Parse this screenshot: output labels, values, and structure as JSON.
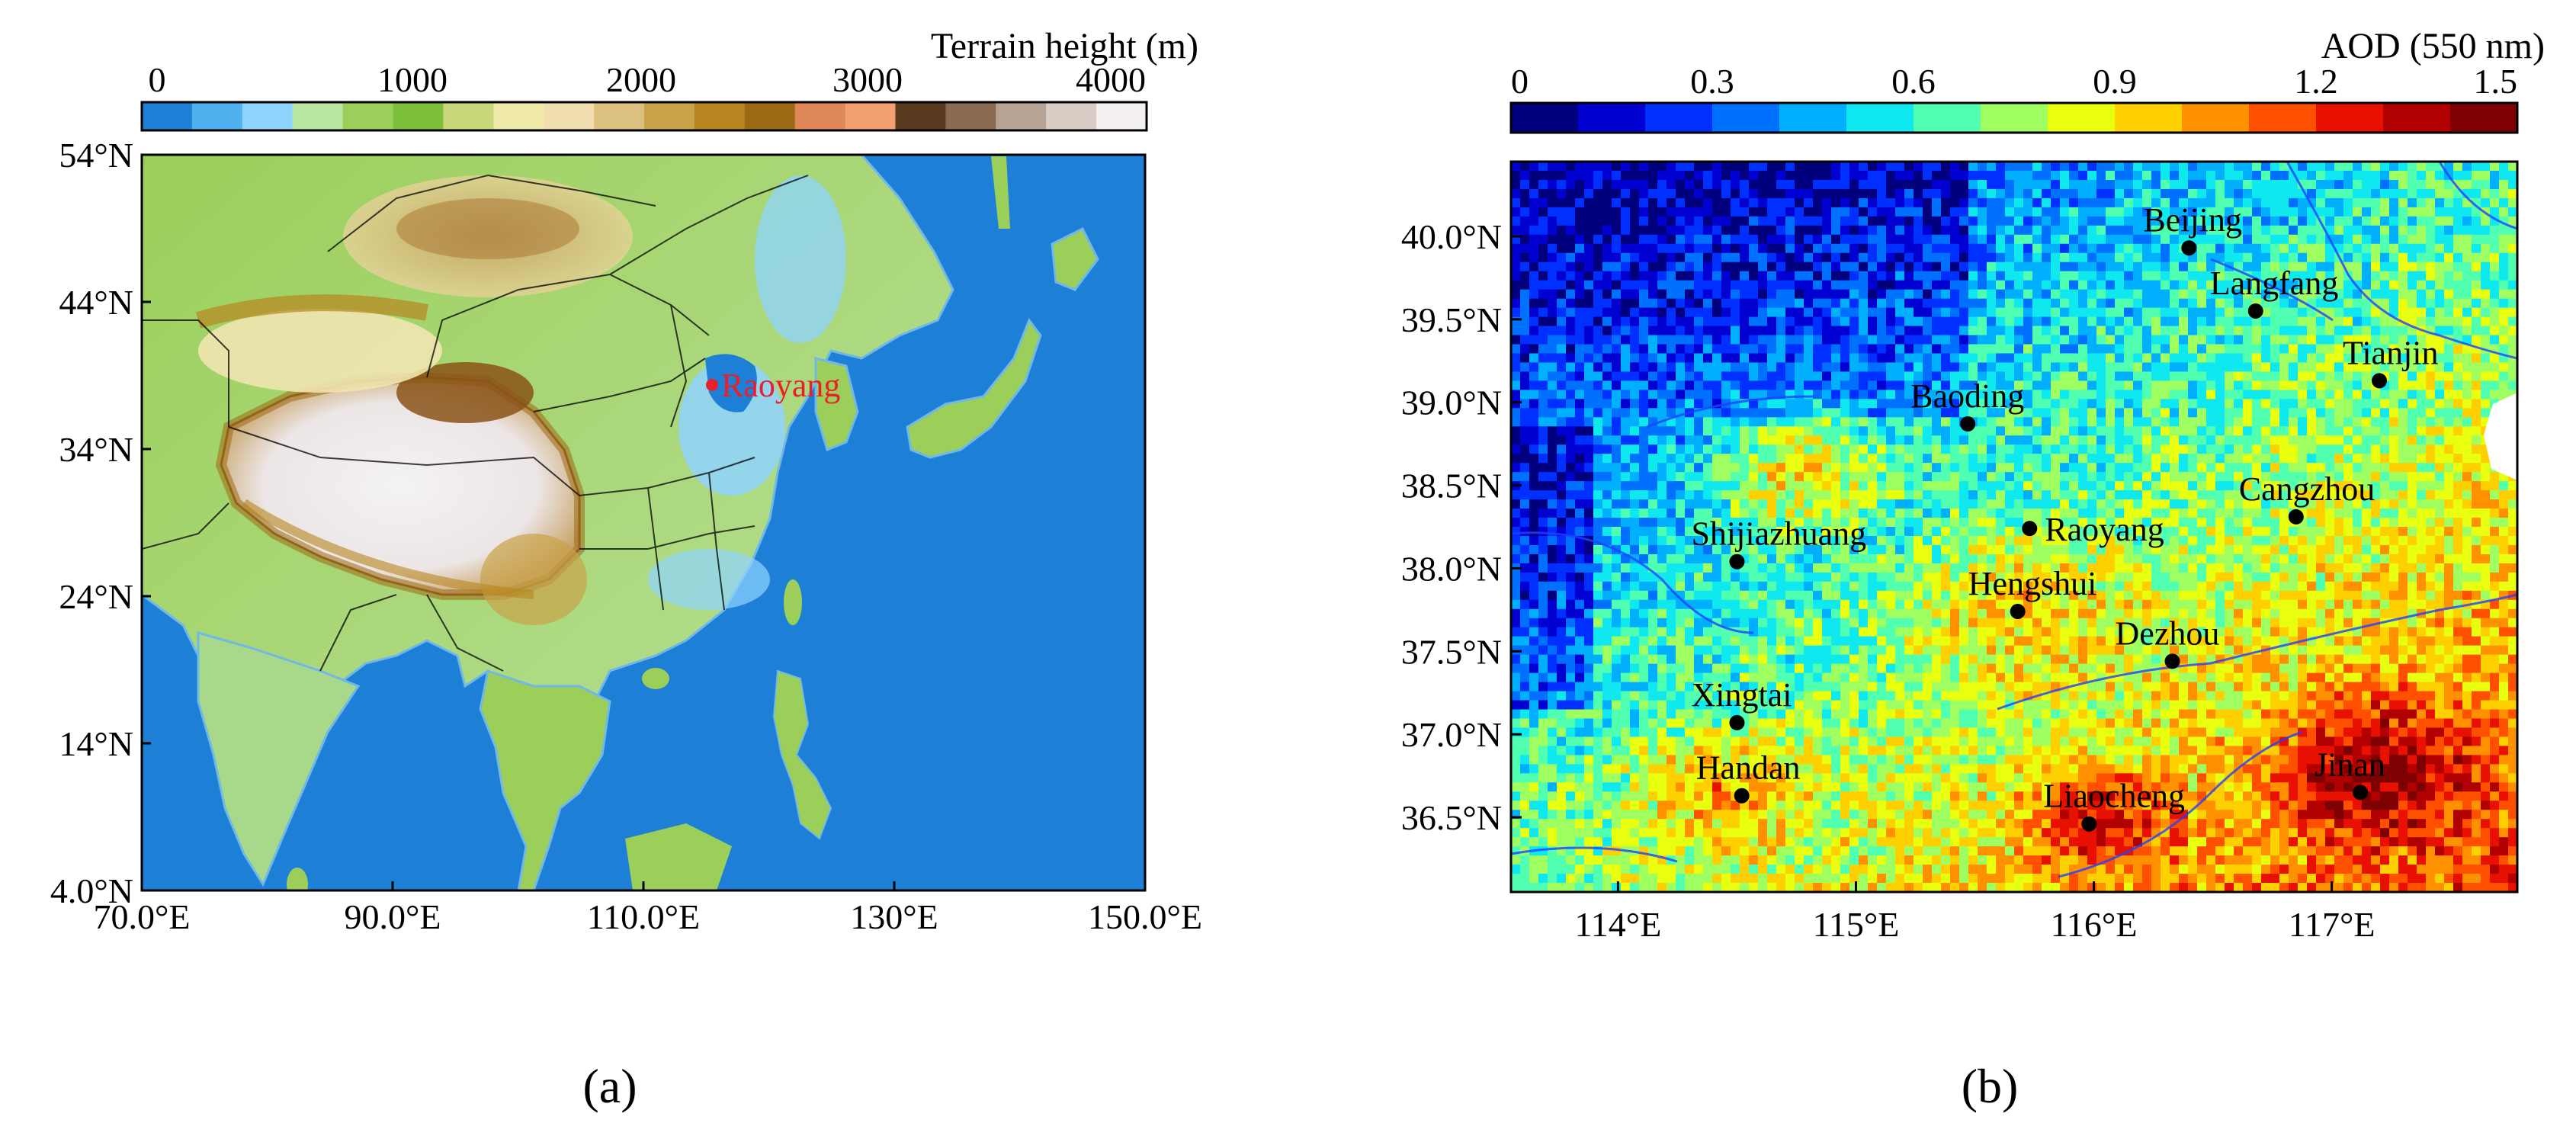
{
  "panel_a": {
    "label": "(a)",
    "colorbar": {
      "title": "Terrain height (m)",
      "ticks": [
        "0",
        "1000",
        "2000",
        "3000",
        "4000"
      ],
      "colors": [
        "#1e7fd6",
        "#4fb0f0",
        "#8fd4ff",
        "#b8e6a0",
        "#9ccf5a",
        "#7cc03a",
        "#c8d87a",
        "#efe9a8",
        "#f0ddb0",
        "#dcc080",
        "#c9a24a",
        "#b88620",
        "#9c6a14",
        "#e0875a",
        "#f2a070",
        "#5a3a1e",
        "#8a6a52",
        "#b8a494",
        "#d8ccc4",
        "#f4f0f0"
      ]
    },
    "map": {
      "lat_ticks": [
        "54°N",
        "44°N",
        "34°N",
        "24°N",
        "14°N",
        "4.0°N"
      ],
      "lon_ticks": [
        "70.0°E",
        "90.0°E",
        "110.0°E",
        "130°E",
        "150.0°E"
      ],
      "site_label": "Raoyang",
      "site_color": "#e8202a",
      "ocean_color": "#1e7fd6"
    }
  },
  "panel_b": {
    "label": "(b)",
    "colorbar": {
      "title": "AOD (550 nm)",
      "ticks": [
        "0",
        "0.3",
        "0.6",
        "0.9",
        "1.2",
        "1.5"
      ],
      "colors": [
        "#00007f",
        "#0000d0",
        "#0030ff",
        "#0070ff",
        "#00b0ff",
        "#10e8f0",
        "#50ffb0",
        "#a0ff60",
        "#e8ff10",
        "#ffd000",
        "#ff9000",
        "#ff5000",
        "#e81000",
        "#b00000",
        "#7f0000"
      ]
    },
    "map": {
      "lat_ticks": [
        "40.0°N",
        "39.5°N",
        "39.0°N",
        "38.5°N",
        "38.0°N",
        "37.5°N",
        "37.0°N",
        "36.5°N"
      ],
      "lon_ticks": [
        "114°E",
        "115°E",
        "116°E",
        "117°E"
      ],
      "cities": [
        {
          "name": "Beijing",
          "lon": 116.4,
          "lat": 39.93
        },
        {
          "name": "Langfang",
          "lon": 116.68,
          "lat": 39.55
        },
        {
          "name": "Tianjin",
          "lon": 117.2,
          "lat": 39.13
        },
        {
          "name": "Baoding",
          "lon": 115.47,
          "lat": 38.87
        },
        {
          "name": "Cangzhou",
          "lon": 116.85,
          "lat": 38.31
        },
        {
          "name": "Shijiazhuang",
          "lon": 114.5,
          "lat": 38.04
        },
        {
          "name": "Raoyang",
          "lon": 115.73,
          "lat": 38.24
        },
        {
          "name": "Hengshui",
          "lon": 115.68,
          "lat": 37.74
        },
        {
          "name": "Dezhou",
          "lon": 116.33,
          "lat": 37.44
        },
        {
          "name": "Xingtai",
          "lon": 114.5,
          "lat": 37.07
        },
        {
          "name": "Handan",
          "lon": 114.52,
          "lat": 36.63
        },
        {
          "name": "Jinan",
          "lon": 117.12,
          "lat": 36.65
        },
        {
          "name": "Liaocheng",
          "lon": 115.98,
          "lat": 36.46
        }
      ]
    }
  }
}
